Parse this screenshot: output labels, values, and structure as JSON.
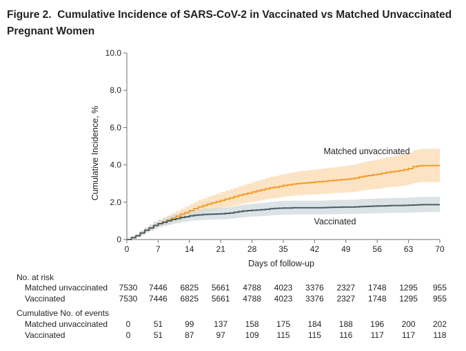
{
  "figure": {
    "label": "Figure 2.",
    "title": "Cumulative Incidence of SARS-CoV-2 in Vaccinated vs Matched Unvaccinated Pregnant Women"
  },
  "colors": {
    "unvaccinated": "#f39c2b",
    "unvaccinated_ci": "#fbd9b0",
    "vaccinated": "#4a5d66",
    "vaccinated_ci": "#cfd9dd",
    "axis": "#6d6e71"
  },
  "chart_data": {
    "type": "line",
    "title": "Cumulative Incidence of SARS-CoV-2 in Vaccinated vs Matched Unvaccinated Pregnant Women",
    "xlabel": "Days of follow-up",
    "ylabel": "Cumulative Incidence, %",
    "xlim": [
      0,
      70
    ],
    "ylim": [
      0,
      10
    ],
    "xticks": [
      0,
      7,
      14,
      21,
      28,
      35,
      42,
      49,
      56,
      63,
      70
    ],
    "yticks": [
      0,
      2,
      4,
      6,
      8,
      10
    ],
    "ytick_labels": [
      "0",
      "2.0",
      "4.0",
      "6.0",
      "8.0",
      "10.0"
    ],
    "series": [
      {
        "name": "Matched unvaccinated",
        "x": [
          0,
          1,
          2,
          3,
          4,
          5,
          6,
          7,
          8,
          9,
          10,
          11,
          12,
          13,
          14,
          15,
          16,
          17,
          18,
          19,
          20,
          21,
          22,
          23,
          24,
          25,
          26,
          27,
          28,
          29,
          30,
          31,
          32,
          33,
          34,
          35,
          36,
          37,
          38,
          39,
          40,
          41,
          42,
          43,
          44,
          45,
          46,
          47,
          48,
          49,
          50,
          51,
          52,
          53,
          54,
          55,
          56,
          57,
          58,
          59,
          60,
          61,
          62,
          63,
          64,
          65,
          66,
          67,
          68,
          69,
          70
        ],
        "y": [
          0,
          0.1,
          0.2,
          0.35,
          0.5,
          0.62,
          0.75,
          0.85,
          0.95,
          1.05,
          1.15,
          1.25,
          1.35,
          1.45,
          1.55,
          1.65,
          1.75,
          1.82,
          1.9,
          1.97,
          2.03,
          2.1,
          2.17,
          2.23,
          2.3,
          2.37,
          2.43,
          2.48,
          2.55,
          2.6,
          2.66,
          2.72,
          2.77,
          2.8,
          2.85,
          2.9,
          2.93,
          2.97,
          3.0,
          3.02,
          3.04,
          3.06,
          3.08,
          3.1,
          3.12,
          3.15,
          3.17,
          3.19,
          3.21,
          3.23,
          3.26,
          3.3,
          3.35,
          3.4,
          3.43,
          3.47,
          3.5,
          3.55,
          3.6,
          3.63,
          3.66,
          3.7,
          3.74,
          3.8,
          3.9,
          3.95,
          3.96,
          3.96,
          3.96,
          3.96,
          3.96
        ],
        "ci_low": [
          0,
          0.06,
          0.13,
          0.25,
          0.38,
          0.48,
          0.58,
          0.67,
          0.75,
          0.83,
          0.92,
          1.0,
          1.08,
          1.15,
          1.24,
          1.32,
          1.4,
          1.46,
          1.52,
          1.58,
          1.63,
          1.68,
          1.74,
          1.78,
          1.84,
          1.9,
          1.94,
          1.98,
          2.03,
          2.07,
          2.12,
          2.16,
          2.2,
          2.22,
          2.26,
          2.3,
          2.32,
          2.35,
          2.37,
          2.38,
          2.4,
          2.41,
          2.42,
          2.44,
          2.45,
          2.47,
          2.49,
          2.5,
          2.51,
          2.52,
          2.54,
          2.57,
          2.61,
          2.65,
          2.67,
          2.7,
          2.72,
          2.76,
          2.8,
          2.82,
          2.84,
          2.87,
          2.9,
          2.95,
          3.03,
          3.07,
          3.08,
          3.08,
          3.08,
          3.08,
          3.08
        ],
        "ci_high": [
          0,
          0.16,
          0.3,
          0.48,
          0.65,
          0.8,
          0.95,
          1.07,
          1.18,
          1.3,
          1.42,
          1.53,
          1.65,
          1.77,
          1.88,
          2.0,
          2.12,
          2.2,
          2.3,
          2.38,
          2.45,
          2.54,
          2.62,
          2.7,
          2.78,
          2.86,
          2.94,
          3.0,
          3.09,
          3.15,
          3.22,
          3.3,
          3.36,
          3.4,
          3.46,
          3.52,
          3.56,
          3.61,
          3.65,
          3.68,
          3.7,
          3.73,
          3.76,
          3.78,
          3.81,
          3.85,
          3.87,
          3.9,
          3.93,
          3.96,
          4.0,
          4.05,
          4.11,
          4.17,
          4.21,
          4.26,
          4.3,
          4.36,
          4.42,
          4.46,
          4.5,
          4.55,
          4.6,
          4.67,
          4.79,
          4.85,
          4.86,
          4.86,
          4.86,
          4.86,
          4.86
        ]
      },
      {
        "name": "Vaccinated",
        "x": [
          0,
          1,
          2,
          3,
          4,
          5,
          6,
          7,
          8,
          9,
          10,
          11,
          12,
          13,
          14,
          15,
          16,
          17,
          18,
          19,
          20,
          21,
          22,
          23,
          24,
          25,
          26,
          27,
          28,
          29,
          30,
          31,
          32,
          33,
          34,
          35,
          36,
          37,
          38,
          39,
          40,
          41,
          42,
          43,
          44,
          45,
          46,
          47,
          48,
          49,
          50,
          51,
          52,
          53,
          54,
          55,
          56,
          57,
          58,
          59,
          60,
          61,
          62,
          63,
          64,
          65,
          66,
          67,
          68,
          69,
          70
        ],
        "y": [
          0,
          0.1,
          0.2,
          0.35,
          0.5,
          0.62,
          0.75,
          0.85,
          0.92,
          1.0,
          1.07,
          1.12,
          1.18,
          1.22,
          1.27,
          1.3,
          1.32,
          1.34,
          1.35,
          1.36,
          1.37,
          1.38,
          1.4,
          1.42,
          1.46,
          1.5,
          1.53,
          1.55,
          1.57,
          1.58,
          1.6,
          1.62,
          1.65,
          1.67,
          1.68,
          1.69,
          1.69,
          1.7,
          1.7,
          1.7,
          1.7,
          1.7,
          1.7,
          1.7,
          1.71,
          1.72,
          1.73,
          1.73,
          1.74,
          1.74,
          1.74,
          1.75,
          1.76,
          1.77,
          1.78,
          1.79,
          1.8,
          1.8,
          1.81,
          1.82,
          1.82,
          1.82,
          1.83,
          1.84,
          1.85,
          1.86,
          1.87,
          1.87,
          1.87,
          1.87,
          1.87
        ],
        "ci_low": [
          0,
          0.06,
          0.13,
          0.25,
          0.38,
          0.48,
          0.58,
          0.67,
          0.72,
          0.78,
          0.84,
          0.88,
          0.93,
          0.96,
          1.0,
          1.02,
          1.04,
          1.05,
          1.06,
          1.07,
          1.08,
          1.09,
          1.1,
          1.12,
          1.15,
          1.18,
          1.2,
          1.22,
          1.23,
          1.24,
          1.26,
          1.27,
          1.3,
          1.31,
          1.32,
          1.33,
          1.33,
          1.34,
          1.34,
          1.34,
          1.34,
          1.34,
          1.34,
          1.34,
          1.35,
          1.35,
          1.36,
          1.36,
          1.37,
          1.37,
          1.37,
          1.38,
          1.38,
          1.39,
          1.4,
          1.41,
          1.41,
          1.41,
          1.42,
          1.43,
          1.43,
          1.43,
          1.44,
          1.44,
          1.45,
          1.46,
          1.47,
          1.47,
          1.47,
          1.47,
          1.47
        ],
        "ci_high": [
          0,
          0.16,
          0.3,
          0.48,
          0.65,
          0.8,
          0.95,
          1.07,
          1.15,
          1.24,
          1.32,
          1.38,
          1.45,
          1.5,
          1.56,
          1.6,
          1.62,
          1.65,
          1.66,
          1.68,
          1.69,
          1.7,
          1.72,
          1.75,
          1.79,
          1.84,
          1.88,
          1.9,
          1.93,
          1.94,
          1.96,
          1.99,
          2.02,
          2.05,
          2.06,
          2.07,
          2.07,
          2.08,
          2.08,
          2.08,
          2.08,
          2.08,
          2.08,
          2.08,
          2.09,
          2.11,
          2.12,
          2.12,
          2.13,
          2.13,
          2.13,
          2.14,
          2.16,
          2.17,
          2.18,
          2.19,
          2.21,
          2.21,
          2.22,
          2.23,
          2.23,
          2.23,
          2.24,
          2.26,
          2.27,
          2.28,
          2.29,
          2.29,
          2.29,
          2.29,
          2.29
        ]
      }
    ],
    "annotations": [
      {
        "text": "Matched unvaccinated",
        "series": "Matched unvaccinated"
      },
      {
        "text": "Vaccinated",
        "series": "Vaccinated"
      }
    ]
  },
  "risk_table": {
    "no_at_risk_header": "No. at risk",
    "events_header": "Cumulative No. of events",
    "at_risk": [
      {
        "label": "Matched unvaccinated",
        "values": [
          "7530",
          "7446",
          "6825",
          "5661",
          "4788",
          "4023",
          "3376",
          "2327",
          "1748",
          "1295",
          "955"
        ]
      },
      {
        "label": "Vaccinated",
        "values": [
          "7530",
          "7446",
          "6825",
          "5661",
          "4788",
          "4023",
          "3376",
          "2327",
          "1748",
          "1295",
          "955"
        ]
      }
    ],
    "events": [
      {
        "label": "Matched unvaccinated",
        "values": [
          "0",
          "51",
          "99",
          "137",
          "158",
          "175",
          "184",
          "188",
          "196",
          "200",
          "202"
        ]
      },
      {
        "label": "Vaccinated",
        "values": [
          "0",
          "51",
          "87",
          "97",
          "109",
          "115",
          "115",
          "116",
          "117",
          "117",
          "118"
        ]
      }
    ]
  }
}
